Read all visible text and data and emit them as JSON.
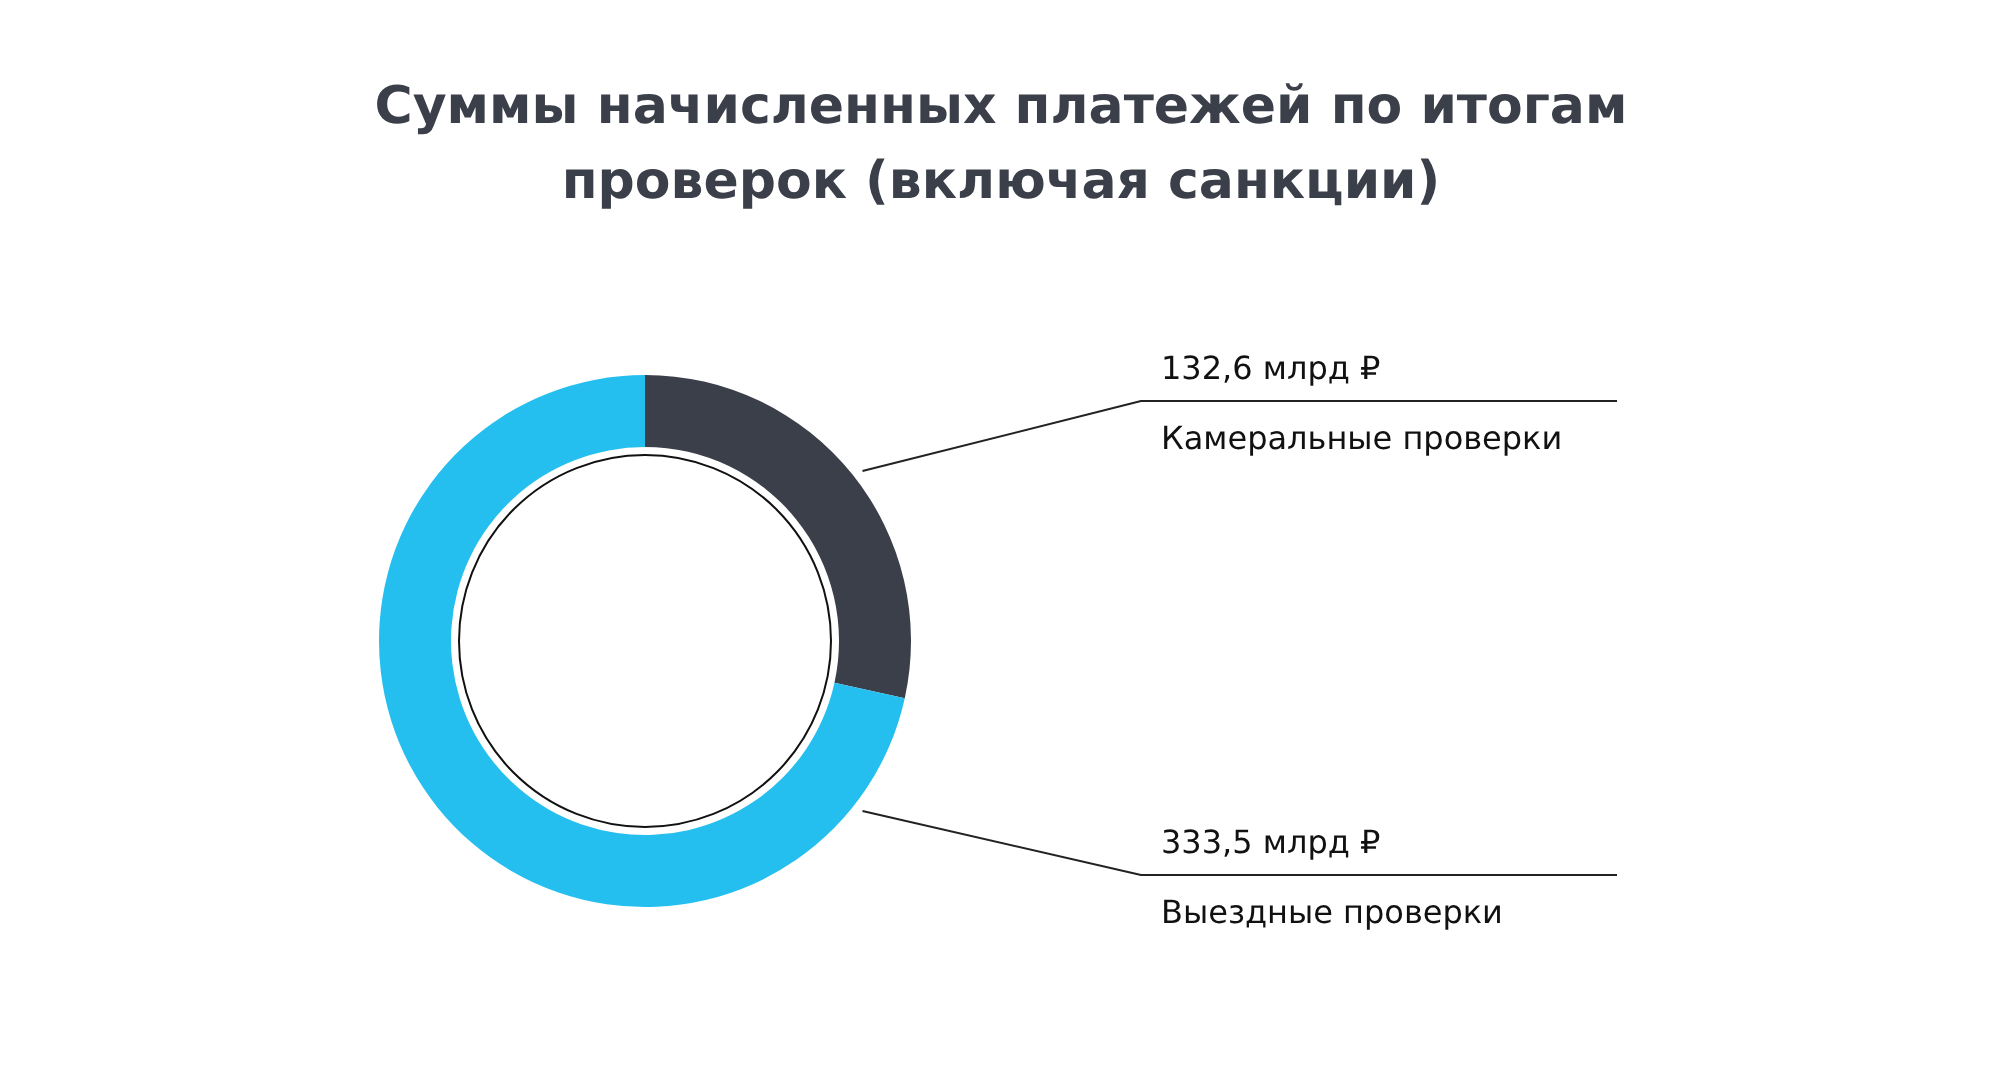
{
  "chart_data": {
    "type": "donut",
    "title": "Суммы начисленных платежей по итогам\nпроверок (включая санкции)",
    "categories": [
      "Камеральные проверки",
      "Выездные проверки"
    ],
    "values": [
      132.6,
      333.5
    ],
    "colors": [
      "#3b3f4a",
      "#25bfef"
    ],
    "value_labels": [
      "132,6 млрд ₽",
      "333,5 млрд ₽"
    ]
  }
}
